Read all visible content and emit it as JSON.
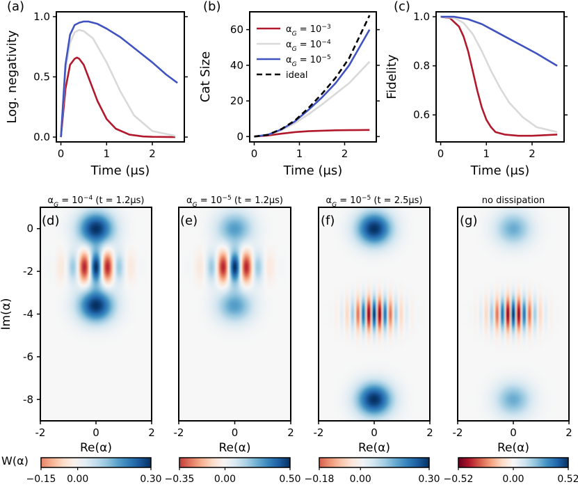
{
  "figure": {
    "panel_labels": [
      "(a)",
      "(b)",
      "(c)",
      "(d)",
      "(e)",
      "(f)",
      "(g)"
    ],
    "colorbar_label": "W(α)"
  },
  "chart_data": [
    {
      "type": "line",
      "panel": "(a)",
      "xlabel": "Time (μs)",
      "ylabel": "Log. negativity",
      "xlim": [
        -0.1,
        2.7
      ],
      "ylim": [
        -0.04,
        1.04
      ],
      "xticks": [
        0,
        1,
        2
      ],
      "yticks": [
        0.0,
        0.5,
        1.0
      ],
      "ytick_labels": [
        "0.0",
        "0.5",
        "1.0"
      ],
      "series": [
        {
          "color": "#b2182b",
          "x": [
            0,
            0.1,
            0.2,
            0.3,
            0.35,
            0.4,
            0.5,
            0.6,
            0.8,
            1.0,
            1.2,
            1.5,
            1.8,
            2.0,
            2.5
          ],
          "y": [
            0,
            0.4,
            0.6,
            0.65,
            0.66,
            0.65,
            0.6,
            0.5,
            0.3,
            0.15,
            0.07,
            0.02,
            0.005,
            0.002,
            0.0
          ]
        },
        {
          "color": "#d9d9d9",
          "x": [
            0,
            0.1,
            0.2,
            0.3,
            0.4,
            0.5,
            0.7,
            1.0,
            1.3,
            1.6,
            2.0,
            2.5
          ],
          "y": [
            0,
            0.55,
            0.78,
            0.87,
            0.89,
            0.88,
            0.82,
            0.62,
            0.38,
            0.18,
            0.05,
            0.01
          ]
        },
        {
          "color": "#4052c0",
          "x": [
            0,
            0.1,
            0.2,
            0.3,
            0.4,
            0.5,
            0.6,
            0.8,
            1.0,
            1.3,
            1.6,
            2.0,
            2.3,
            2.55
          ],
          "y": [
            0,
            0.6,
            0.85,
            0.93,
            0.95,
            0.96,
            0.96,
            0.94,
            0.9,
            0.83,
            0.74,
            0.62,
            0.52,
            0.45
          ]
        }
      ]
    },
    {
      "type": "line",
      "panel": "(b)",
      "xlabel": "Time (μs)",
      "ylabel": "Cat Size",
      "xlim": [
        -0.1,
        2.7
      ],
      "ylim": [
        -3,
        70
      ],
      "xticks": [
        0,
        1,
        2
      ],
      "yticks": [
        0,
        20,
        40,
        60
      ],
      "legend_position": "top-left",
      "series": [
        {
          "name": "α_G = 10^-3",
          "color": "#b2182b",
          "dash": false,
          "x": [
            0,
            0.3,
            0.6,
            0.9,
            1.2,
            1.5,
            1.8,
            2.1,
            2.55
          ],
          "y": [
            0,
            0.6,
            1.6,
            2.5,
            3.0,
            3.3,
            3.5,
            3.6,
            3.7
          ]
        },
        {
          "name": "α_G = 10^-4",
          "color": "#d9d9d9",
          "dash": false,
          "x": [
            0,
            0.3,
            0.6,
            0.9,
            1.2,
            1.5,
            1.8,
            2.1,
            2.55
          ],
          "y": [
            0,
            1,
            3.5,
            7.5,
            12.5,
            18,
            24,
            30,
            42
          ]
        },
        {
          "name": "α_G = 10^-5",
          "color": "#4052c0",
          "dash": false,
          "x": [
            0,
            0.3,
            0.6,
            0.9,
            1.2,
            1.5,
            1.8,
            2.1,
            2.55
          ],
          "y": [
            0,
            1,
            4,
            8.5,
            15,
            22,
            30,
            40,
            60
          ]
        },
        {
          "name": "ideal",
          "color": "#000000",
          "dash": true,
          "x": [
            0,
            0.3,
            0.6,
            0.9,
            1.2,
            1.5,
            1.8,
            2.1,
            2.55
          ],
          "y": [
            0,
            1,
            4.2,
            9,
            16,
            24,
            33,
            44,
            68
          ]
        }
      ]
    },
    {
      "type": "line",
      "panel": "(c)",
      "xlabel": "Time (μs)",
      "ylabel": "Fidelity",
      "xlim": [
        -0.1,
        2.7
      ],
      "ylim": [
        0.49,
        1.02
      ],
      "xticks": [
        0,
        1,
        2
      ],
      "yticks": [
        0.6,
        0.8,
        1.0
      ],
      "ytick_labels": [
        "0.6",
        "0.8",
        "1.0"
      ],
      "series": [
        {
          "color": "#b2182b",
          "x": [
            0,
            0.2,
            0.4,
            0.5,
            0.6,
            0.7,
            0.8,
            0.9,
            1.0,
            1.1,
            1.2,
            1.4,
            1.7,
            2.0,
            2.55
          ],
          "y": [
            1.0,
            0.995,
            0.96,
            0.92,
            0.86,
            0.78,
            0.7,
            0.63,
            0.58,
            0.55,
            0.53,
            0.52,
            0.515,
            0.515,
            0.52
          ]
        },
        {
          "color": "#d9d9d9",
          "x": [
            0,
            0.3,
            0.5,
            0.7,
            0.9,
            1.1,
            1.3,
            1.5,
            1.8,
            2.1,
            2.55
          ],
          "y": [
            1.0,
            0.995,
            0.975,
            0.93,
            0.86,
            0.78,
            0.71,
            0.65,
            0.59,
            0.55,
            0.53
          ]
        },
        {
          "color": "#4052c0",
          "x": [
            0,
            0.3,
            0.6,
            0.9,
            1.2,
            1.5,
            1.8,
            2.1,
            2.55
          ],
          "y": [
            1.0,
            1.0,
            0.99,
            0.97,
            0.94,
            0.91,
            0.88,
            0.85,
            0.8
          ]
        }
      ]
    },
    {
      "type": "heatmap",
      "panel": "(d)",
      "title": "α_G = 10^-4 (t = 1.2μs)",
      "xlabel": "Re(α)",
      "ylabel": "Im(α)",
      "xlim": [
        -2,
        2
      ],
      "ylim": [
        -9,
        1
      ],
      "xticks": [
        -2,
        0,
        2
      ],
      "yticks": [
        0,
        -2,
        -4,
        -6,
        -8
      ],
      "blobs": [
        {
          "y": 0,
          "amp": 0.3
        },
        {
          "y": -3.6,
          "amp": 0.3
        }
      ],
      "fringe": {
        "y": -1.8,
        "amp": 0.3,
        "kx": 7.2,
        "sx": 0.6,
        "sy": 0.5
      },
      "colorbar": {
        "ticks": [
          "-0.15",
          "0.00",
          "0.30"
        ],
        "min": -0.15,
        "max": 0.3
      }
    },
    {
      "type": "heatmap",
      "panel": "(e)",
      "title": "α_G = 10^-5 (t = 1.2μs)",
      "xlabel": "Re(α)",
      "xlim": [
        -2,
        2
      ],
      "ylim": [
        -9,
        1
      ],
      "xticks": [
        -2,
        0,
        2
      ],
      "blobs": [
        {
          "y": 0,
          "amp": 0.28
        },
        {
          "y": -3.6,
          "amp": 0.28
        }
      ],
      "fringe": {
        "y": -1.8,
        "amp": 0.5,
        "kx": 7.2,
        "sx": 0.6,
        "sy": 0.5
      },
      "colorbar": {
        "ticks": [
          "-0.35",
          "0.00",
          "0.50"
        ],
        "min": -0.35,
        "max": 0.5
      }
    },
    {
      "type": "heatmap",
      "panel": "(f)",
      "title": "α_G = 10^-5 (t = 2.5μs)",
      "xlabel": "Re(α)",
      "xlim": [
        -2,
        2
      ],
      "ylim": [
        -9,
        1
      ],
      "xticks": [
        -2,
        0,
        2
      ],
      "blobs": [
        {
          "y": 0,
          "amp": 0.3
        },
        {
          "y": -8.0,
          "amp": 0.3
        }
      ],
      "fringe": {
        "y": -4.0,
        "amp": 0.3,
        "kx": 16,
        "sx": 0.55,
        "sy": 0.55
      },
      "colorbar": {
        "ticks": [
          "-0.18",
          "0.00",
          "0.30"
        ],
        "min": -0.18,
        "max": 0.3
      }
    },
    {
      "type": "heatmap",
      "panel": "(g)",
      "title": "no dissipation",
      "xlabel": "Re(α)",
      "xlim": [
        -2,
        2
      ],
      "ylim": [
        -9,
        1
      ],
      "xticks": [
        -2,
        0,
        2
      ],
      "blobs": [
        {
          "y": 0,
          "amp": 0.26
        },
        {
          "y": -8.0,
          "amp": 0.26
        }
      ],
      "fringe": {
        "y": -4.0,
        "amp": 0.52,
        "kx": 16,
        "sx": 0.55,
        "sy": 0.55
      },
      "colorbar": {
        "ticks": [
          "-0.52",
          "0.00",
          "0.52"
        ],
        "min": -0.52,
        "max": 0.52
      }
    }
  ]
}
